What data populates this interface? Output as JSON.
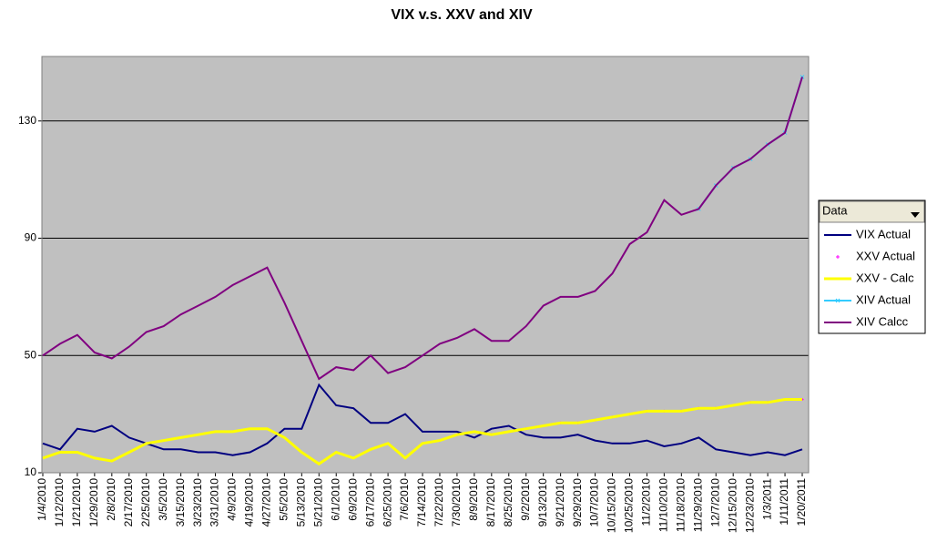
{
  "chart_data": {
    "type": "line",
    "title": "VIX v.s. XXV and XIV",
    "categories": [
      "1/4/2010",
      "1/12/2010",
      "1/21/2010",
      "1/29/2010",
      "2/8/2010",
      "2/17/2010",
      "2/25/2010",
      "3/5/2010",
      "3/15/2010",
      "3/23/2010",
      "3/31/2010",
      "4/9/2010",
      "4/19/2010",
      "4/27/2010",
      "5/5/2010",
      "5/13/2010",
      "5/21/2010",
      "6/1/2010",
      "6/9/2010",
      "6/17/2010",
      "6/25/2010",
      "7/6/2010",
      "7/14/2010",
      "7/22/2010",
      "7/30/2010",
      "8/9/2010",
      "8/17/2010",
      "8/25/2010",
      "9/2/2010",
      "9/13/2010",
      "9/21/2010",
      "9/29/2010",
      "10/7/2010",
      "10/15/2010",
      "10/25/2010",
      "11/2/2010",
      "11/10/2010",
      "11/18/2010",
      "11/29/2010",
      "12/7/2010",
      "12/15/2010",
      "12/23/2010",
      "1/3/2011",
      "1/11/2011",
      "1/20/2011"
    ],
    "series": [
      {
        "name": "VIX Actual",
        "color": "#000080",
        "line": true,
        "values": [
          20,
          18,
          25,
          24,
          26,
          22,
          20,
          18,
          18,
          17,
          17,
          16,
          17,
          20,
          25,
          25,
          40,
          33,
          32,
          27,
          27,
          30,
          24,
          24,
          24,
          22,
          25,
          26,
          23,
          22,
          22,
          23,
          21,
          20,
          20,
          21,
          19,
          20,
          22,
          18,
          17,
          16,
          17,
          16,
          18
        ]
      },
      {
        "name": "XXV Actual",
        "color": "#ff00ff",
        "line": false,
        "marker": "plus",
        "values": [
          null,
          null,
          null,
          null,
          null,
          null,
          null,
          null,
          null,
          null,
          null,
          null,
          null,
          null,
          null,
          null,
          null,
          null,
          null,
          null,
          null,
          null,
          null,
          21,
          23,
          24,
          23,
          24,
          25,
          26,
          27,
          27,
          28,
          29,
          30,
          31,
          31,
          31,
          32,
          32,
          33,
          34,
          34,
          35,
          35
        ]
      },
      {
        "name": "XXV - Calc",
        "color": "#ffff00",
        "line": true,
        "values": [
          15,
          17,
          17,
          15,
          14,
          17,
          20,
          21,
          22,
          23,
          24,
          24,
          25,
          25,
          22,
          17,
          13,
          17,
          15,
          18,
          20,
          15,
          20,
          21,
          23,
          24,
          23,
          24,
          25,
          26,
          27,
          27,
          28,
          29,
          30,
          31,
          31,
          31,
          32,
          32,
          33,
          34,
          34,
          35,
          35
        ]
      },
      {
        "name": " XIV Actual",
        "color": "#33ccff",
        "line": true,
        "marker": "x",
        "values": [
          null,
          null,
          null,
          null,
          null,
          null,
          null,
          null,
          null,
          null,
          null,
          null,
          null,
          null,
          null,
          null,
          null,
          null,
          null,
          null,
          null,
          null,
          null,
          null,
          null,
          null,
          null,
          null,
          null,
          null,
          null,
          null,
          null,
          null,
          null,
          null,
          null,
          null,
          100,
          108,
          114,
          117,
          122,
          126,
          145
        ]
      },
      {
        "name": "XIV Calcc",
        "color": "#800080",
        "line": true,
        "values": [
          50,
          54,
          57,
          51,
          49,
          53,
          58,
          60,
          64,
          67,
          70,
          74,
          77,
          80,
          68,
          55,
          42,
          46,
          45,
          50,
          44,
          46,
          50,
          54,
          56,
          59,
          55,
          55,
          60,
          67,
          70,
          70,
          72,
          78,
          88,
          92,
          103,
          98,
          100,
          108,
          114,
          117,
          122,
          126,
          145
        ]
      }
    ],
    "legend_title": "Data",
    "ylim": [
      10,
      152
    ],
    "yticks": [
      10,
      50,
      90,
      130
    ],
    "grid": true
  }
}
